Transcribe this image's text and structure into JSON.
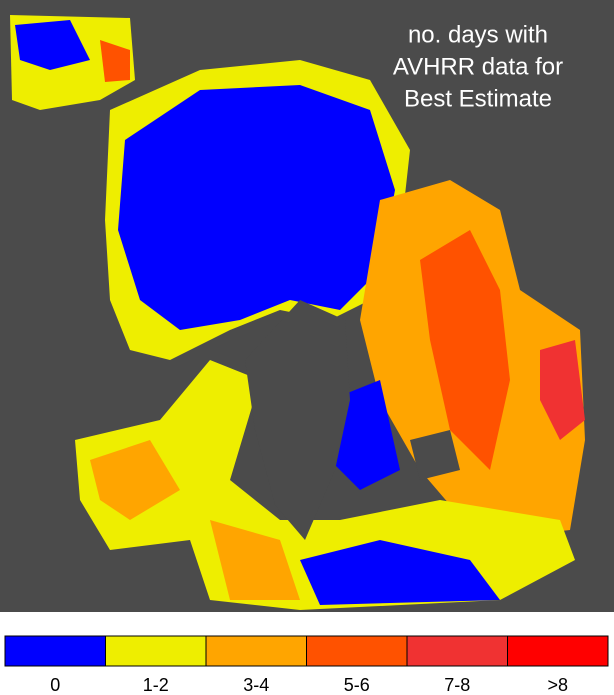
{
  "title": {
    "lines": [
      "no. days with",
      "AVHRR data for",
      "Best Estimate"
    ]
  },
  "legend": {
    "items": [
      {
        "label": "0",
        "color": "#0000ff"
      },
      {
        "label": "1-2",
        "color": "#eeee00"
      },
      {
        "label": "3-4",
        "color": "#ffa500"
      },
      {
        "label": "5-6",
        "color": "#ff5200"
      },
      {
        "label": "7-8",
        "color": "#f03232"
      },
      {
        "label": ">8",
        "color": "#ff0000"
      }
    ]
  }
}
